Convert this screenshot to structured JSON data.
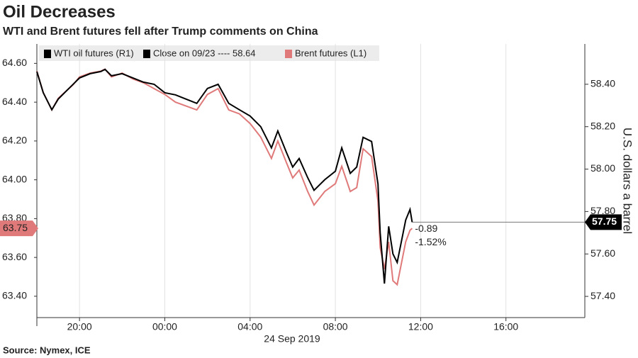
{
  "chart_data": {
    "type": "line",
    "title": "Oil Decreases",
    "subtitle": "WTI and Brent futures fell after Trump comments on China",
    "source": "Source: Nymex, ICE",
    "x_label": "24 Sep 2019",
    "y2_label": "U.S. dollars a barrel",
    "legend_note": "Close on 09/23 ---- 58.64",
    "x": [
      -6,
      -5.7,
      -5.3,
      -5,
      -4.7,
      -4.3,
      -4,
      -3.5,
      -3,
      -2.8,
      -2.5,
      -2,
      -1.5,
      -1,
      -0.5,
      0,
      0.5,
      1,
      1.5,
      2,
      2.5,
      3,
      3.5,
      4,
      4.5,
      5,
      5.3,
      5.7,
      6,
      6.3,
      6.7,
      7,
      7.5,
      8,
      8.3,
      8.7,
      9,
      9.3,
      9.7,
      10,
      10.1,
      10.3,
      10.5,
      10.7,
      10.9,
      11.1,
      11.3,
      11.5,
      11.6
    ],
    "series": [
      {
        "name": "Brent futures (L1)",
        "color": "#e07a7a",
        "axis": "y",
        "values": [
          64.56,
          64.45,
          64.36,
          64.42,
          64.45,
          64.49,
          64.53,
          64.55,
          64.56,
          64.57,
          64.53,
          64.55,
          64.52,
          64.5,
          64.47,
          64.44,
          64.4,
          64.38,
          64.36,
          64.44,
          64.47,
          64.36,
          64.34,
          64.29,
          64.22,
          64.11,
          64.2,
          64.09,
          64.01,
          64.05,
          63.94,
          63.87,
          63.94,
          63.98,
          64.07,
          63.94,
          63.96,
          64.16,
          64.12,
          63.89,
          63.65,
          63.54,
          63.68,
          63.48,
          63.46,
          63.57,
          63.68,
          63.74,
          63.75
        ]
      },
      {
        "name": "WTI oil futures (R1)",
        "color": "#000000",
        "axis": "y2",
        "values": [
          58.46,
          58.36,
          58.28,
          58.33,
          58.36,
          58.4,
          58.43,
          58.45,
          58.46,
          58.47,
          58.44,
          58.45,
          58.43,
          58.41,
          58.4,
          58.36,
          58.35,
          58.33,
          58.31,
          58.38,
          58.4,
          58.31,
          58.28,
          58.25,
          58.2,
          58.1,
          58.18,
          58.08,
          58.01,
          58.05,
          57.96,
          57.9,
          57.95,
          57.99,
          58.1,
          57.98,
          58.01,
          58.15,
          58.13,
          57.93,
          57.7,
          57.46,
          57.73,
          57.6,
          57.56,
          57.66,
          57.76,
          57.81,
          57.75
        ]
      }
    ],
    "last_values": {
      "y": 63.75,
      "y2": 57.75
    },
    "annotations": [
      "-0.89",
      "-1.52%"
    ],
    "xlim": [
      -6,
      19.7
    ],
    "xticks": [
      {
        "value": -4,
        "label": "20:00"
      },
      {
        "value": 0,
        "label": "00:00"
      },
      {
        "value": 4,
        "label": "04:00"
      },
      {
        "value": 8,
        "label": "08:00"
      },
      {
        "value": 12,
        "label": "12:00"
      },
      {
        "value": 16,
        "label": "16:00"
      }
    ],
    "ylim": [
      63.29,
      64.7
    ],
    "yticks": [
      {
        "value": 63.4,
        "label": "63.40"
      },
      {
        "value": 63.6,
        "label": "63.60"
      },
      {
        "value": 63.8,
        "label": "63.80"
      },
      {
        "value": 64.0,
        "label": "64.00"
      },
      {
        "value": 64.2,
        "label": "64.20"
      },
      {
        "value": 64.4,
        "label": "64.40"
      },
      {
        "value": 64.6,
        "label": "64.60"
      }
    ],
    "y2lim": [
      57.3,
      58.59
    ],
    "y2ticks": [
      {
        "value": 57.4,
        "label": "57.40"
      },
      {
        "value": 57.6,
        "label": "57.60"
      },
      {
        "value": 57.8,
        "label": "57.80"
      },
      {
        "value": 58.0,
        "label": "58.00"
      },
      {
        "value": 58.2,
        "label": "58.20"
      },
      {
        "value": 58.4,
        "label": "58.40"
      }
    ],
    "grid": true
  }
}
